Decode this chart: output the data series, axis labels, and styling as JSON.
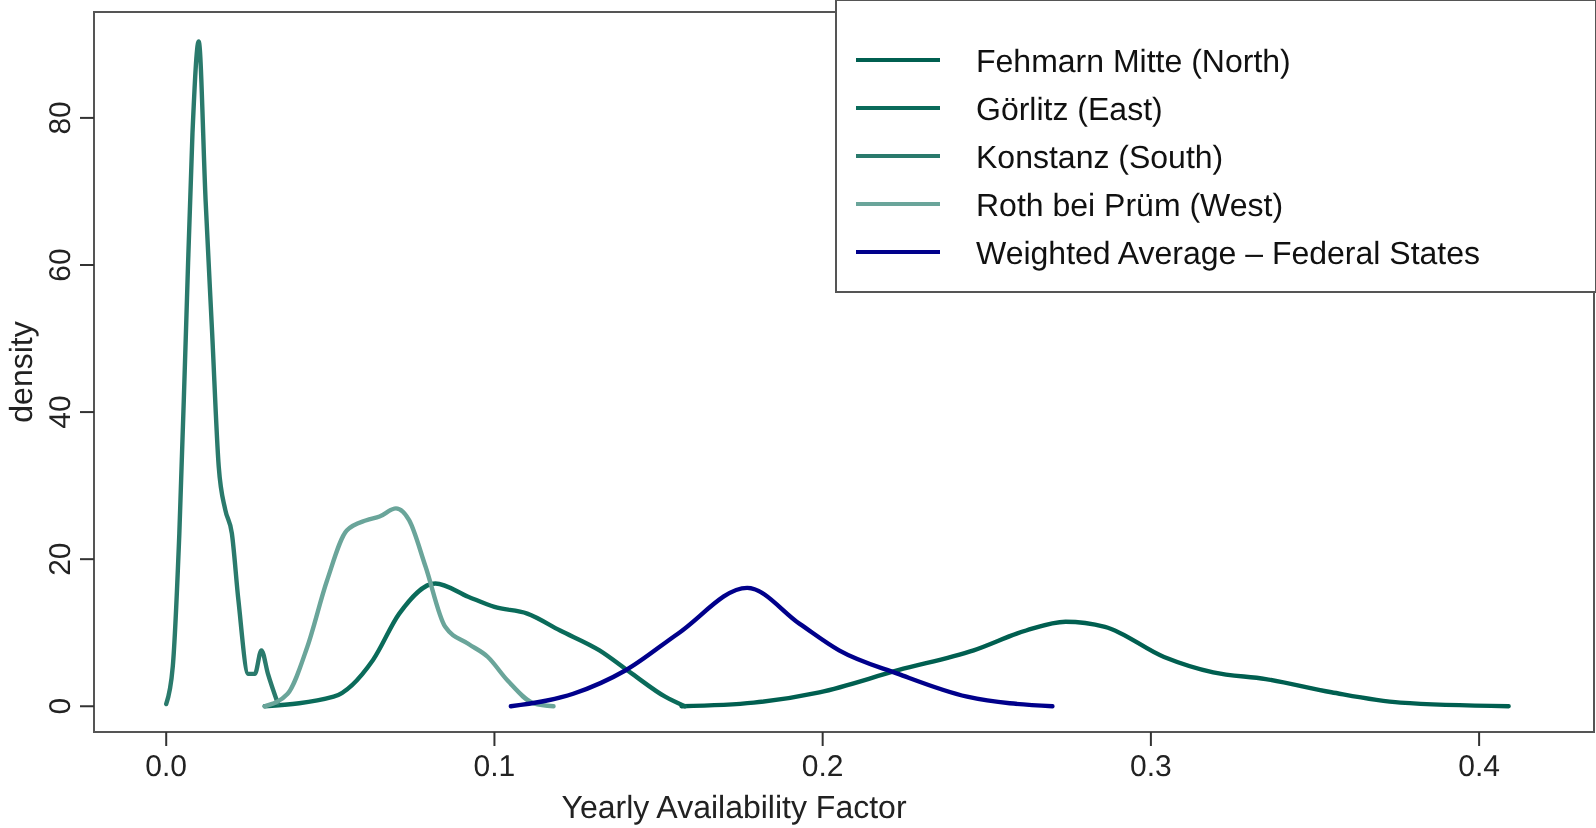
{
  "chart_data": {
    "type": "line",
    "xlabel": "Yearly Availability Factor",
    "ylabel": "density",
    "xlim": [
      -0.022,
      0.435
    ],
    "ylim": [
      -3.5,
      94.4
    ],
    "xticks": [
      {
        "value": 0,
        "label": "0.0"
      },
      {
        "value": 0.1,
        "label": "0.1"
      },
      {
        "value": 0.2,
        "label": "0.2"
      },
      {
        "value": 0.3,
        "label": "0.3"
      },
      {
        "value": 0.4,
        "label": "0.4"
      }
    ],
    "yticks": [
      0,
      20,
      40,
      60,
      80
    ],
    "grid": false,
    "legend": "top right",
    "marker": "none",
    "line_style": "solid",
    "series": [
      {
        "name": "Fehmarn Mitte (North)",
        "color": "#005f50",
        "x": [
          0.157,
          0.179,
          0.199,
          0.223,
          0.246,
          0.262,
          0.274,
          0.286,
          0.304,
          0.319,
          0.335,
          0.355,
          0.376,
          0.409
        ],
        "values": [
          0,
          0.5,
          1.9,
          4.9,
          7.6,
          10.3,
          11.5,
          10.8,
          6.7,
          4.6,
          3.7,
          1.9,
          0.5,
          0
        ]
      },
      {
        "name": "Görlitz (East)",
        "color": "#0a6b5a",
        "x": [
          0.03,
          0.051,
          0.063,
          0.071,
          0.082,
          0.092,
          0.1,
          0.11,
          0.12,
          0.132,
          0.142,
          0.152,
          0.158
        ],
        "values": [
          0,
          1.3,
          6.3,
          12.6,
          16.7,
          14.9,
          13.5,
          12.6,
          10.3,
          7.6,
          4.4,
          1.3,
          0
        ]
      },
      {
        "name": "Konstanz (South)",
        "color": "#2a7a6c",
        "x": [
          0,
          0.002,
          0.004,
          0.006,
          0.008,
          0.0099,
          0.012,
          0.014,
          0.016,
          0.018,
          0.02,
          0.022,
          0.025,
          0.027,
          0.029,
          0.031,
          0.034
        ],
        "values": [
          0.3,
          5.4,
          23.5,
          50.7,
          77.9,
          90.4,
          68.8,
          50.7,
          32.6,
          26.7,
          23.5,
          14.4,
          4.4,
          4.4,
          7.6,
          4.4,
          0.4
        ]
      },
      {
        "name": "Roth bei Prüm (West)",
        "color": "#6aa59a",
        "x": [
          0.03,
          0.037,
          0.043,
          0.049,
          0.055,
          0.061,
          0.065,
          0.07,
          0.074,
          0.079,
          0.085,
          0.092,
          0.098,
          0.104,
          0.112,
          0.118
        ],
        "values": [
          0,
          1.7,
          8.1,
          17.1,
          23.9,
          25.3,
          25.8,
          26.9,
          25.3,
          19,
          10.8,
          8.5,
          6.7,
          3.5,
          0.4,
          0
        ]
      },
      {
        "name": "Weighted Average – Federal States",
        "color": "#00008b",
        "x": [
          0.105,
          0.124,
          0.14,
          0.156,
          0.177,
          0.193,
          0.205,
          0.223,
          0.244,
          0.27
        ],
        "values": [
          0,
          1.7,
          4.9,
          9.9,
          16.1,
          11.2,
          7.6,
          4.4,
          1.3,
          0
        ]
      }
    ]
  }
}
